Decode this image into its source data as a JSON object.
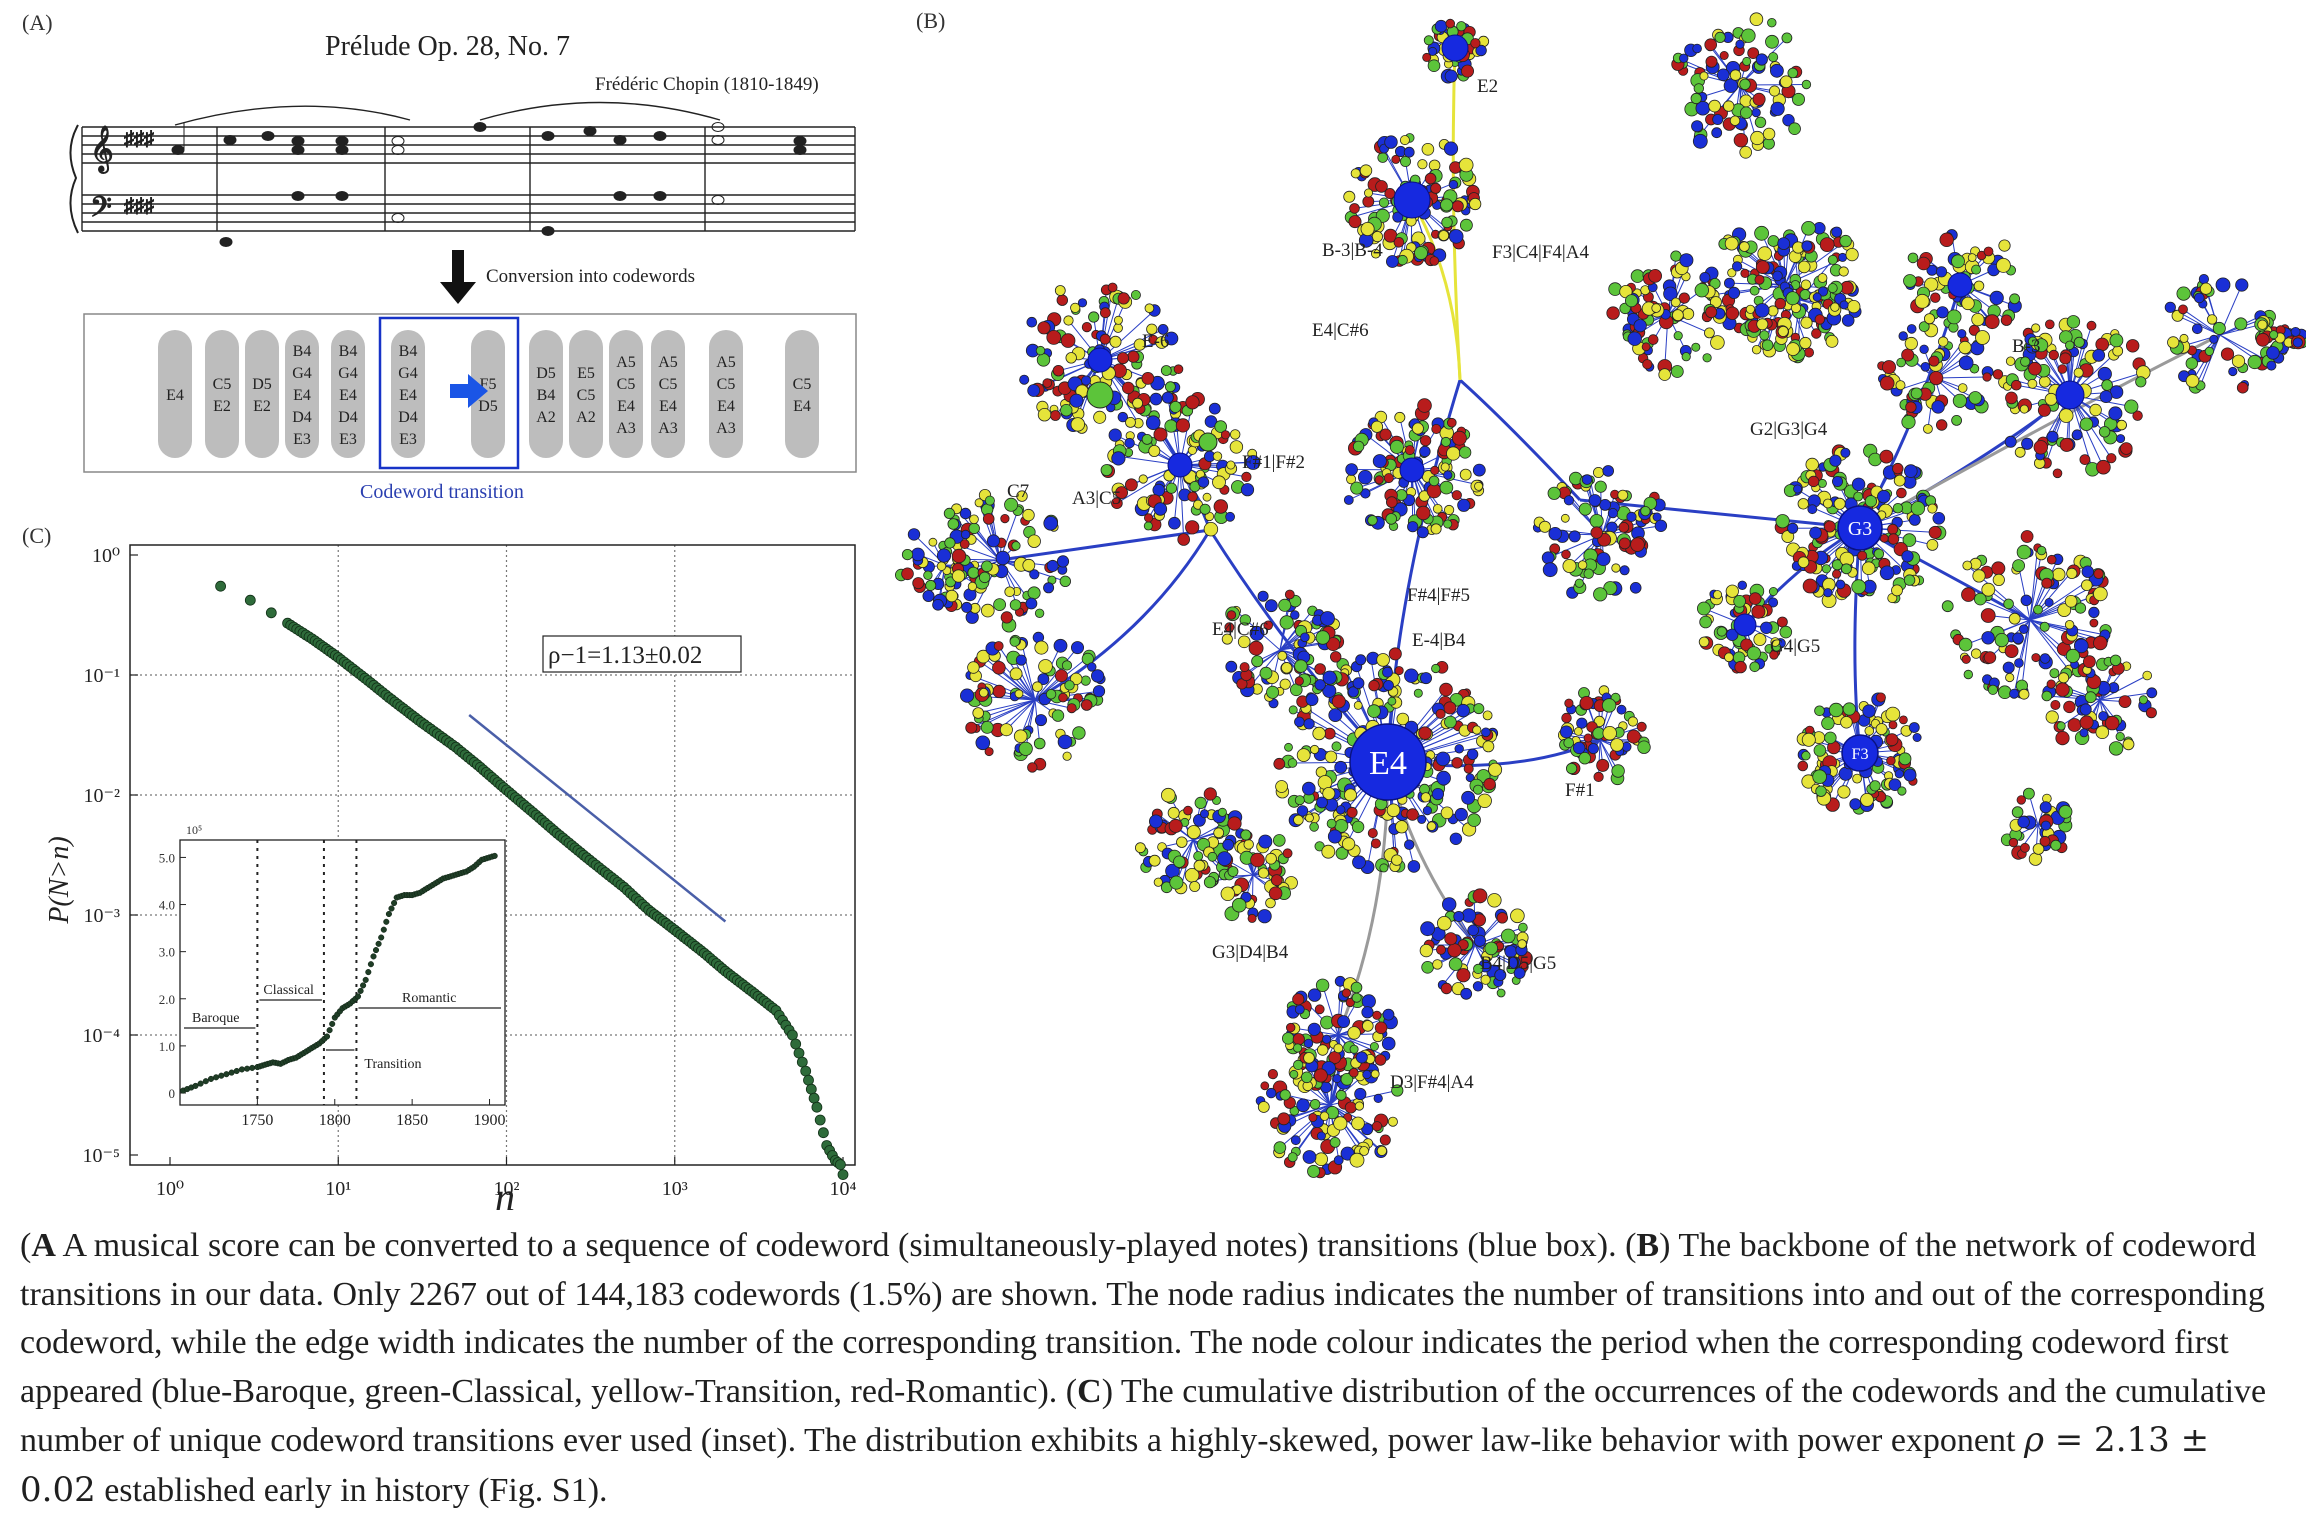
{
  "panelA": {
    "label": "(A)",
    "title": "Prélude Op. 28, No. 7",
    "composer": "Frédéric Chopin (1810-1849)",
    "conversion_label": "Conversion into codewords",
    "transition_label": "Codeword transition",
    "codewords": [
      [
        "E4"
      ],
      [
        "C5",
        "E2"
      ],
      [
        "D5",
        "E2"
      ],
      [
        "B4",
        "G4",
        "E4",
        "D4",
        "E3"
      ],
      [
        "B4",
        "G4",
        "E4",
        "D4",
        "E3"
      ],
      [
        "B4",
        "G4",
        "E4",
        "D4",
        "E3"
      ],
      [
        "F5",
        "D5"
      ],
      [
        "D5",
        "B4",
        "A2"
      ],
      [
        "E5",
        "C5",
        "A2"
      ],
      [
        "A5",
        "C5",
        "E4",
        "A3"
      ],
      [
        "A5",
        "C5",
        "E4",
        "A3"
      ],
      [
        "A5",
        "C5",
        "E4",
        "A3"
      ],
      [
        "C5",
        "E4"
      ]
    ]
  },
  "panelB": {
    "label": "(B)",
    "hubs": [
      "E4",
      "G3",
      "F3"
    ],
    "node_labels": [
      "E2",
      "B-3|B-4",
      "F3|C4|F4|A4",
      "E4|C#6",
      "E-6",
      "B-3",
      "G2|G3|G4",
      "F#1|F#2",
      "C7",
      "A3|C5",
      "E4|C#6",
      "F#4|F#5",
      "E-4|B4",
      "G4|G5",
      "F#1",
      "G3|D4|B4",
      "B4|D5|G5",
      "D3|F#4|A4"
    ],
    "colors": {
      "baroque": "#1a2fd6",
      "classical": "#5cc43a",
      "transition": "#e6e43a",
      "romantic": "#b81c1c"
    }
  },
  "panelC": {
    "label": "(C)",
    "annotation": "ρ−1=1.13±0.02",
    "inset_tick_exponent": "10⁵",
    "inset_labels": {
      "baroque": "Baroque",
      "classical": "Classical",
      "romantic": "Romantic",
      "transition": "Transition"
    }
  },
  "chart_data": [
    {
      "type": "scatter",
      "xlabel": "n",
      "ylabel": "P(N>n)",
      "xscale": "log",
      "yscale": "log",
      "xlim": [
        1,
        10000
      ],
      "ylim": [
        1e-05,
        1
      ],
      "xticks": [
        "10⁰",
        "10¹",
        "10²",
        "10³",
        "10⁴"
      ],
      "yticks": [
        "10⁰",
        "10⁻¹",
        "10⁻²",
        "10⁻³",
        "10⁻⁴",
        "10⁻⁵"
      ],
      "grid": true,
      "series": [
        {
          "x": [
            2,
            3,
            4,
            5,
            7,
            10,
            15,
            20,
            30,
            50,
            70,
            100,
            150,
            200,
            300,
            500,
            700,
            1000,
            1500,
            2000,
            3000,
            4000,
            5000,
            6000,
            7000,
            8000,
            9000,
            10000
          ],
          "y": [
            0.55,
            0.42,
            0.33,
            0.27,
            0.2,
            0.14,
            0.09,
            0.065,
            0.042,
            0.025,
            0.017,
            0.011,
            0.0068,
            0.0048,
            0.003,
            0.0017,
            0.0011,
            0.00075,
            0.00048,
            0.00034,
            0.00022,
            0.00016,
            0.0001,
            5e-05,
            2.5e-05,
            1.2e-05,
            9e-06,
            8e-06
          ]
        }
      ],
      "reference_line_slope": -1.13
    },
    {
      "type": "scatter",
      "inset": true,
      "xlim": [
        1700,
        1910
      ],
      "ylim": [
        0,
        5.0
      ],
      "xticks": [
        "1750",
        "1800",
        "1850",
        "1900"
      ],
      "yticks": [
        "0",
        "1.0",
        "2.0",
        "3.0",
        "4.0",
        "5.0"
      ],
      "y_multiplier": "10⁵",
      "series": [
        {
          "x": [
            1702,
            1710,
            1720,
            1730,
            1740,
            1750,
            1755,
            1760,
            1765,
            1770,
            1775,
            1780,
            1785,
            1790,
            1795,
            1800,
            1805,
            1810,
            1815,
            1820,
            1825,
            1830,
            1835,
            1840,
            1845,
            1850,
            1855,
            1860,
            1865,
            1870,
            1875,
            1880,
            1885,
            1890,
            1895,
            1900,
            1905
          ],
          "y": [
            0.05,
            0.15,
            0.3,
            0.4,
            0.5,
            0.55,
            0.6,
            0.65,
            0.62,
            0.7,
            0.75,
            0.85,
            0.95,
            1.05,
            1.2,
            1.6,
            1.8,
            1.9,
            2.05,
            2.4,
            2.9,
            3.3,
            3.8,
            4.15,
            4.2,
            4.2,
            4.25,
            4.35,
            4.45,
            4.55,
            4.6,
            4.65,
            4.7,
            4.8,
            4.95,
            5.0,
            5.05
          ]
        }
      ],
      "period_dividers": [
        1750,
        1793,
        1814
      ]
    }
  ],
  "caption": {
    "a_tag": "A",
    "a_text": " A musical score can be converted to a sequence of codeword (simultaneously-played notes) transitions (blue box). (",
    "b_tag": "B",
    "b_text": ") The backbone of the network of codeword transitions in our data. Only 2267 out of 144,183 codewords (1.5%) are shown. The node radius indicates the number of transitions into and out of the corresponding codeword, while the edge width indicates the number of the corresponding transition. The node colour indicates the period when the corresponding codeword first appeared (blue-Baroque, green-Classical, yellow-Transition, red-Romantic). (",
    "c_tag": "C",
    "c_text": ") The cumulative distribution of the occurrences of the codewords and the cumulative number of unique codeword transitions ever used (inset). The distribution exhibits a highly-skewed, power law-like behavior with power exponent ",
    "math_rho": "ρ",
    "math_eq": " = 2.13 ± 0.02",
    "tail": " established early in history (Fig. S1)."
  }
}
